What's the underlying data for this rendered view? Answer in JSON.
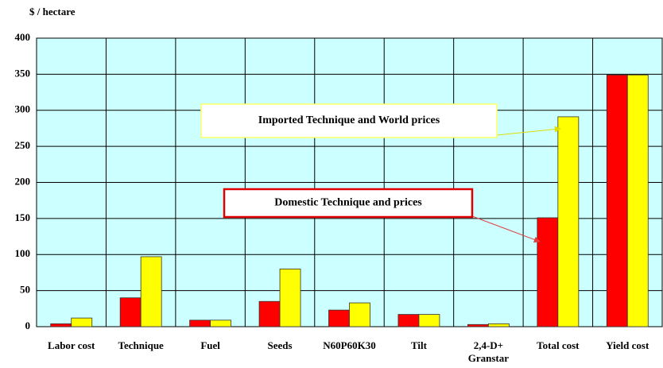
{
  "chart_data": {
    "type": "bar",
    "y_label": "$ / hectare",
    "categories": [
      "Labor cost",
      "Technique",
      "Fuel",
      "Seeds",
      "N60P60K30",
      "Tilt",
      "2,4-D+\nGranstar",
      "Total cost",
      "Yield cost"
    ],
    "series": [
      {
        "name": "Domestic Technique and prices",
        "color": "#ff0000",
        "values": [
          4,
          40,
          9,
          35,
          23,
          17,
          3,
          151,
          349
        ]
      },
      {
        "name": "Imported Technique and World prices",
        "color": "#ffff00",
        "values": [
          12,
          97,
          9,
          80,
          33,
          17,
          4,
          291,
          349
        ]
      }
    ],
    "ylim": [
      0,
      400
    ],
    "yticks": [
      0,
      50,
      100,
      150,
      200,
      250,
      300,
      350,
      400
    ],
    "grid": true
  }
}
